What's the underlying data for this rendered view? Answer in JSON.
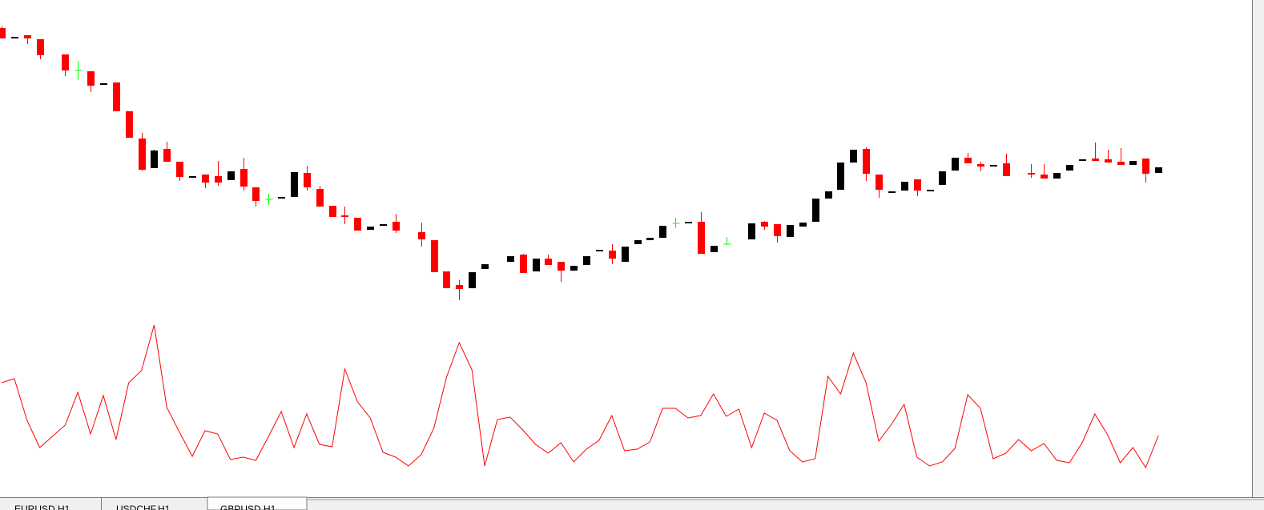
{
  "chart_data": [
    {
      "type": "candlestick",
      "ylim": [
        0,
        400
      ],
      "up_color": "#000000",
      "down_color": "#ff0000",
      "doji_color": "#00ff00",
      "open": [
        365,
        353,
        356,
        351,
        null,
        332,
        312,
        311,
        295,
        297,
        261,
        227,
        190,
        214,
        198,
        179,
        182,
        180,
        175,
        189,
        166,
        151,
        153,
        154,
        184,
        164,
        143,
        131,
        128,
        113,
        118,
        123,
        null,
        110,
        100,
        61,
        44,
        40,
        64,
        null,
        73,
        82,
        61,
        77,
        73,
        62,
        69,
        87,
        87,
        73,
        95,
        100,
        103,
        121,
        122,
        123,
        85,
        95,
        null,
        101,
        123,
        120,
        104,
        117,
        123,
        152,
        163,
        197,
        214,
        182,
        160,
        162,
        176,
        162,
        169,
        187,
        203,
        195,
        193,
        196,
        null,
        184,
        182,
        177,
        187,
        200,
        202,
        201,
        198,
        194,
        202,
        184
      ],
      "high": [
        367,
        354,
        356,
        351,
        null,
        332,
        324,
        311,
        296,
        297,
        261,
        234,
        213,
        223,
        198,
        180,
        182,
        199,
        186,
        203,
        166,
        158,
        154,
        185,
        193,
        168,
        143,
        142,
        128,
        117,
        120,
        133,
        null,
        122,
        100,
        61,
        50,
        60,
        70,
        null,
        80,
        83,
        77,
        82,
        73,
        68,
        80,
        88,
        95,
        92,
        100,
        103,
        118,
        128,
        123,
        135,
        93,
        104,
        null,
        121,
        124,
        120,
        119,
        122,
        152,
        161,
        197,
        213,
        216,
        182,
        161,
        173,
        176,
        163,
        186,
        203,
        209,
        198,
        194,
        208,
        null,
        195,
        195,
        184,
        194,
        201,
        222,
        213,
        215,
        199,
        202,
        191
      ],
      "low": [
        352,
        353,
        345,
        326,
        null,
        305,
        300,
        285,
        295,
        261,
        228,
        187,
        190,
        198,
        174,
        179,
        165,
        168,
        175,
        162,
        142,
        144,
        153,
        154,
        162,
        142,
        129,
        120,
        112,
        113,
        118,
        109,
        null,
        92,
        60,
        40,
        25,
        40,
        64,
        null,
        73,
        59,
        61,
        69,
        48,
        62,
        69,
        87,
        70,
        73,
        95,
        100,
        103,
        115,
        122,
        83,
        85,
        95,
        null,
        101,
        113,
        97,
        104,
        117,
        123,
        152,
        163,
        197,
        174,
        153,
        160,
        162,
        155,
        162,
        169,
        187,
        196,
        186,
        193,
        180,
        null,
        178,
        177,
        177,
        187,
        200,
        199,
        197,
        194,
        194,
        172,
        184
      ],
      "close": [
        352,
        354,
        352,
        331,
        null,
        312,
        312,
        293,
        296,
        261,
        228,
        188,
        212,
        198,
        179,
        180,
        172,
        172,
        186,
        167,
        149,
        151,
        154,
        185,
        166,
        142,
        129,
        129,
        112,
        117,
        120,
        112,
        null,
        101,
        60,
        40,
        39,
        60,
        70,
        null,
        80,
        59,
        77,
        69,
        62,
        68,
        80,
        88,
        77,
        92,
        100,
        103,
        118,
        121,
        123,
        83,
        93,
        95,
        null,
        121,
        117,
        105,
        119,
        122,
        152,
        161,
        197,
        213,
        183,
        163,
        161,
        173,
        162,
        163,
        186,
        203,
        196,
        192,
        194,
        180,
        null,
        182,
        177,
        184,
        194,
        201,
        199,
        197,
        194,
        199,
        183,
        191
      ]
    },
    {
      "type": "line",
      "ylim": [
        0,
        220
      ],
      "color": "#ff0000",
      "values": [
        142,
        147,
        95,
        61,
        75,
        89,
        130,
        78,
        126,
        71,
        142,
        157,
        214,
        111,
        80,
        50,
        82,
        78,
        46,
        49,
        45,
        75,
        106,
        61,
        103,
        65,
        62,
        159,
        118,
        98,
        55,
        49,
        38,
        52,
        85,
        149,
        192,
        158,
        38,
        96,
        99,
        83,
        65,
        54,
        67,
        43,
        59,
        70,
        101,
        57,
        59,
        68,
        110,
        110,
        98,
        101,
        128,
        100,
        109,
        61,
        104,
        95,
        57,
        43,
        47,
        150,
        128,
        179,
        142,
        69,
        90,
        115,
        49,
        38,
        43,
        60,
        127,
        110,
        47,
        54,
        71,
        57,
        66,
        45,
        42,
        67,
        103,
        77,
        42,
        61,
        36,
        76
      ]
    }
  ],
  "tabs": [
    "EURUSD,H1",
    "USDCHF,H1",
    "GBPUSD,H1"
  ]
}
